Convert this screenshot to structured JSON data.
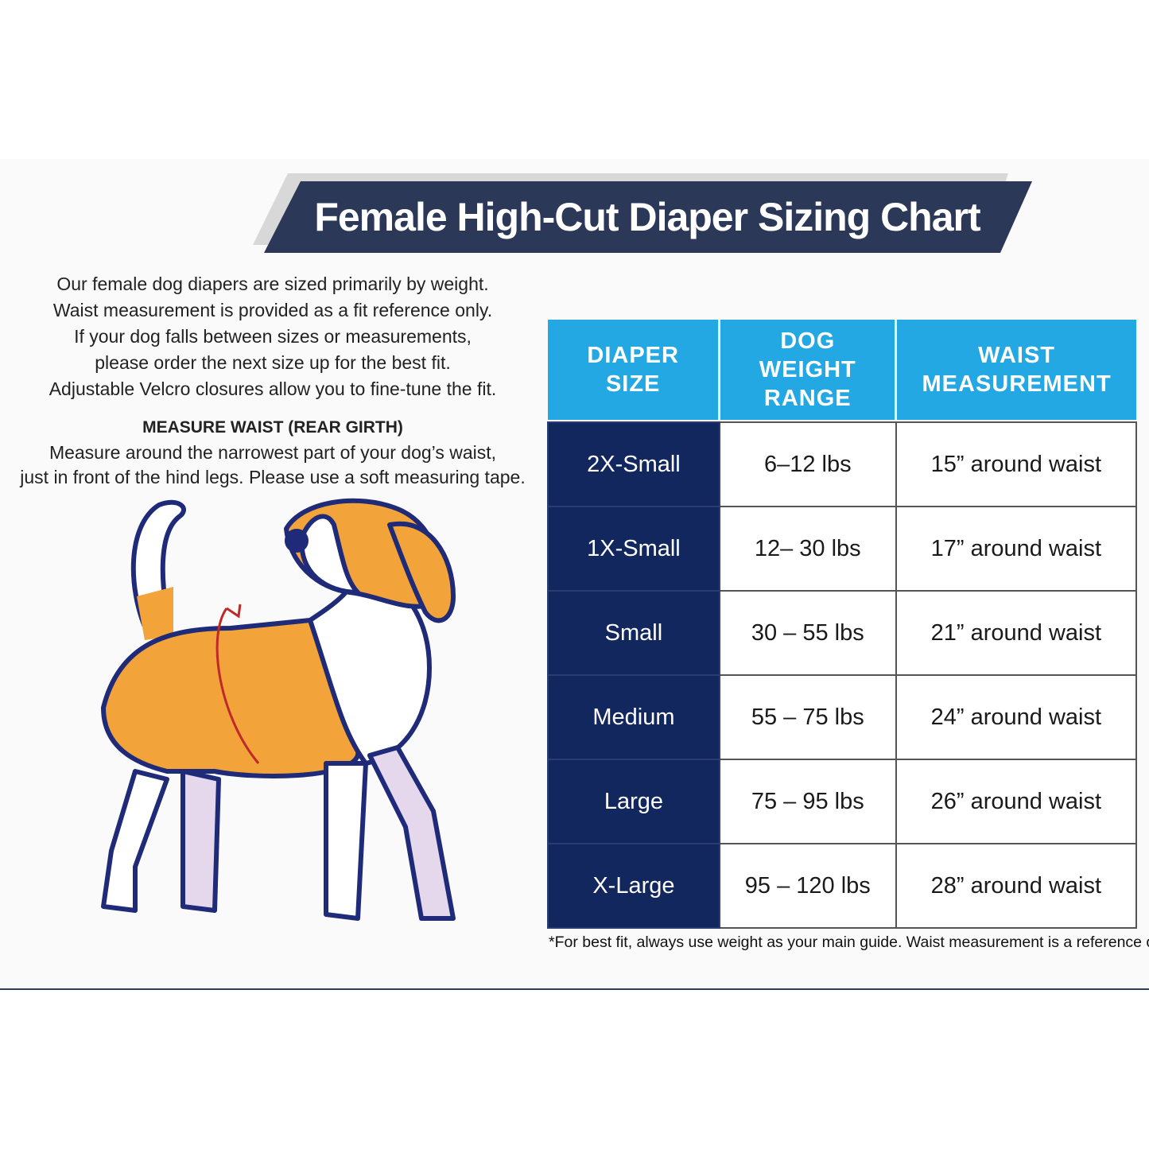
{
  "title": "Female High-Cut Diaper Sizing Chart",
  "intro": [
    "Our female dog diapers are sized primarily by weight.",
    "Waist measurement is provided as a fit reference only.",
    "If your dog falls between sizes or measurements,",
    "please order the next size up for the best fit.",
    "Adjustable Velcro closures allow you to fine-tune the fit."
  ],
  "measure": {
    "heading": "MEASURE WAIST (REAR GIRTH)",
    "lines": [
      "Measure around the narrowest part of your dog’s waist,",
      "just in front of the hind legs. Please use a soft measuring tape."
    ]
  },
  "table": {
    "headers": [
      "DIAPER SIZE",
      "DOG WEIGHT RANGE",
      "WAIST MEASUREMENT"
    ],
    "rows": [
      [
        "2X-Small",
        "6–12 lbs",
        "15” around waist"
      ],
      [
        "1X-Small",
        "12– 30 lbs",
        "17” around waist"
      ],
      [
        "Small",
        "30 – 55 lbs",
        "21” around waist"
      ],
      [
        "Medium",
        "55 – 75 lbs",
        "24” around waist"
      ],
      [
        "Large",
        "75 – 95 lbs",
        "26” around waist"
      ],
      [
        "X-Large",
        "95 – 120 lbs",
        "28” around waist"
      ]
    ]
  },
  "footnote": "*For best fit, always use weight as your main guide. Waist measurement is a reference only."
}
